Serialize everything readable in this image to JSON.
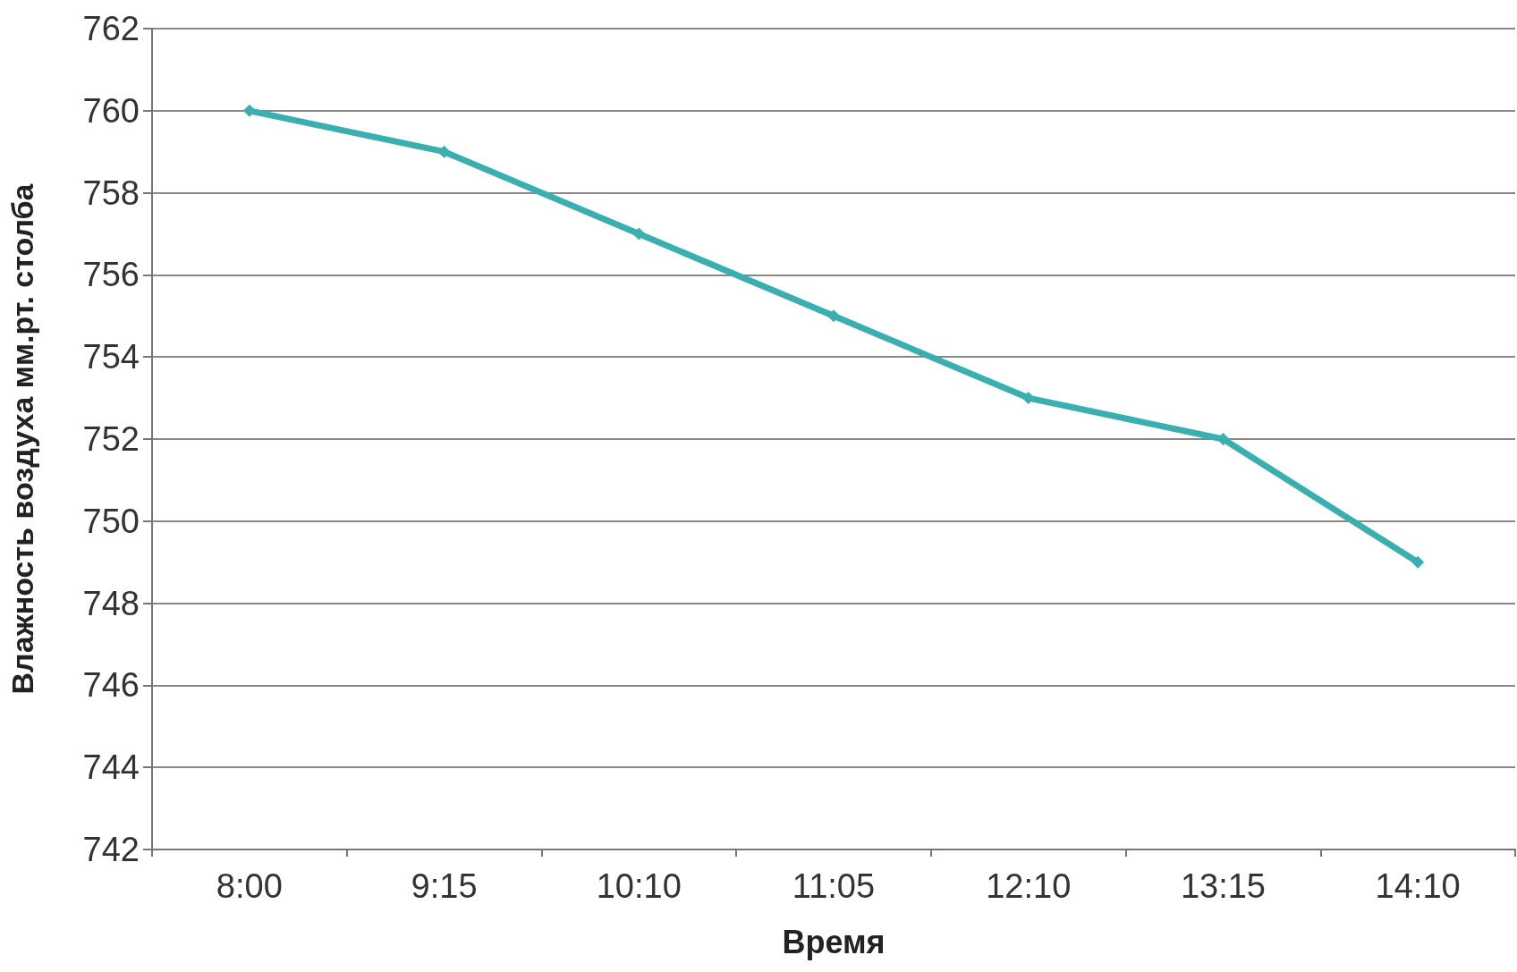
{
  "chart_data": {
    "type": "line",
    "xlabel": "Время",
    "ylabel": "Влажность воздуха мм.рт. столба",
    "categories": [
      "8:00",
      "9:15",
      "10:10",
      "11:05",
      "12:10",
      "13:15",
      "14:10"
    ],
    "series": [
      {
        "color": "#3aafb0",
        "values": [
          760,
          759,
          757,
          755,
          753,
          752,
          749
        ]
      }
    ],
    "ylim": [
      742,
      762
    ],
    "yticks": [
      742,
      744,
      746,
      748,
      750,
      752,
      754,
      756,
      758,
      760,
      762
    ],
    "grid": "y",
    "marker": "diamond",
    "line_style": "solid"
  }
}
